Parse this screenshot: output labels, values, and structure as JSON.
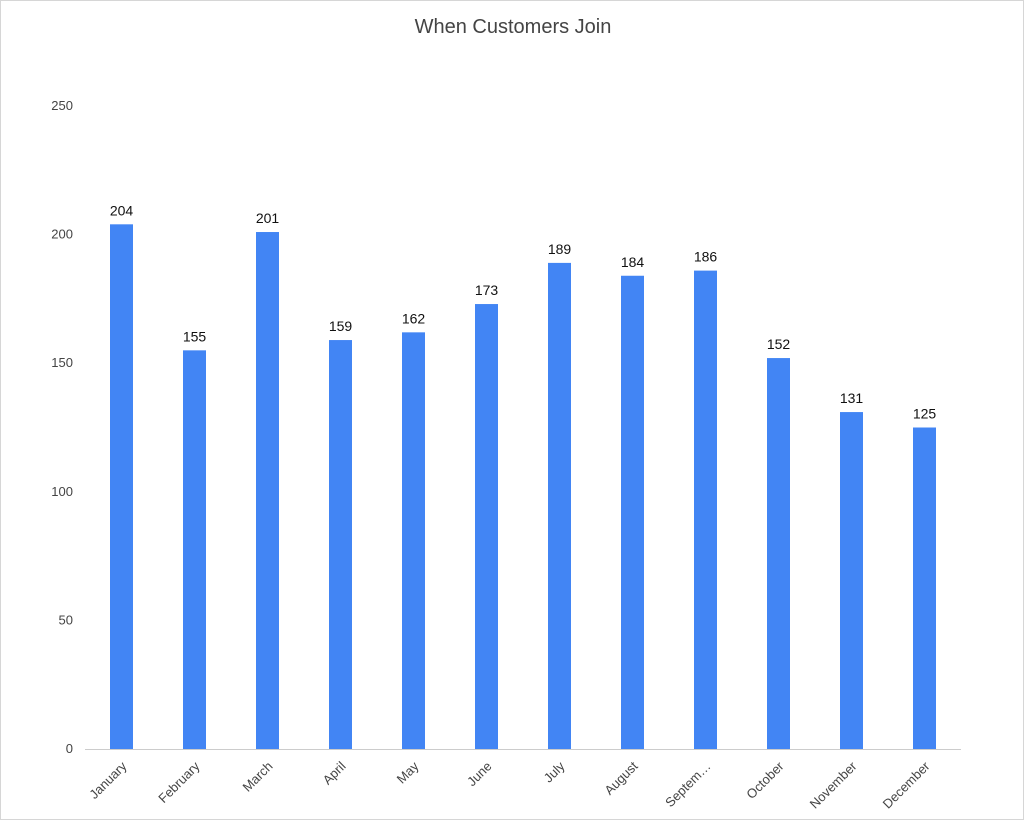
{
  "chart_data": {
    "type": "bar",
    "title": "When Customers Join",
    "xlabel": "",
    "ylabel": "",
    "categories": [
      "January",
      "February",
      "March",
      "April",
      "May",
      "June",
      "July",
      "August",
      "Septem…",
      "October",
      "November",
      "December"
    ],
    "values": [
      204,
      155,
      201,
      159,
      162,
      173,
      189,
      184,
      186,
      152,
      131,
      125
    ],
    "ylim": [
      0,
      250
    ],
    "yticks": [
      0,
      50,
      100,
      150,
      200,
      250
    ],
    "grid": false,
    "legend": "none",
    "bar_color": "#4285F4",
    "axis_color": "#cccccc"
  }
}
